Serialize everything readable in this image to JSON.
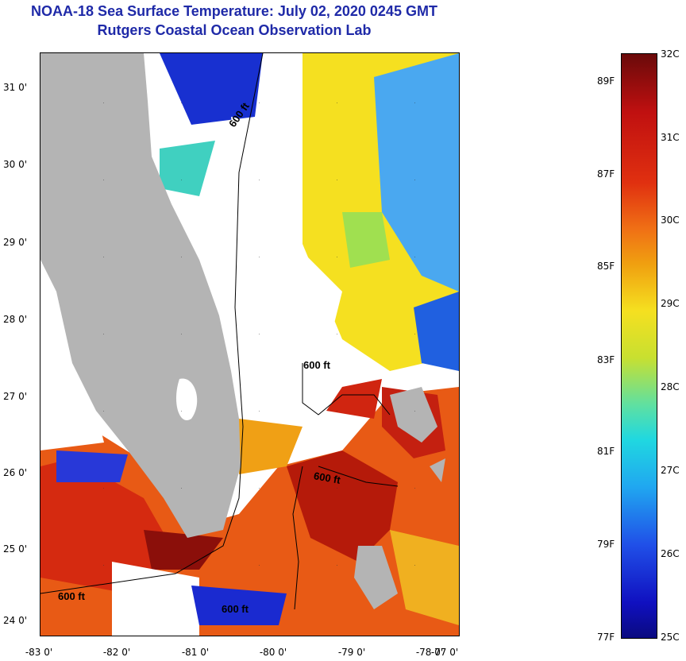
{
  "title_line1": "NOAA-18 Sea Surface Temperature:  July 02, 2020 0245 GMT",
  "title_line2": "Rutgers Coastal Ocean Observation Lab",
  "lat_labels": [
    "31 0'",
    "30 0'",
    "29 0'",
    "28 0'",
    "27 0'",
    "26 0'",
    "25 0'",
    "24 0'"
  ],
  "lon_labels": [
    "-83 0'",
    "-82 0'",
    "-81 0'",
    "-80 0'",
    "-79 0'",
    "-78 0'",
    "-77 0'"
  ],
  "contour_labels": [
    "600 ft",
    "600 ft",
    "600 ft",
    "600 ft",
    "600 ft"
  ],
  "colorbar": {
    "celsius": [
      "32C",
      "31C",
      "30C",
      "29C",
      "28C",
      "27C",
      "26C",
      "25C"
    ],
    "fahrenheit": [
      "89F",
      "87F",
      "85F",
      "83F",
      "81F",
      "79F",
      "77F"
    ]
  },
  "colors": {
    "land": "#b4b4b4",
    "cloud": "#ffffff",
    "title": "#1f2aa8"
  }
}
